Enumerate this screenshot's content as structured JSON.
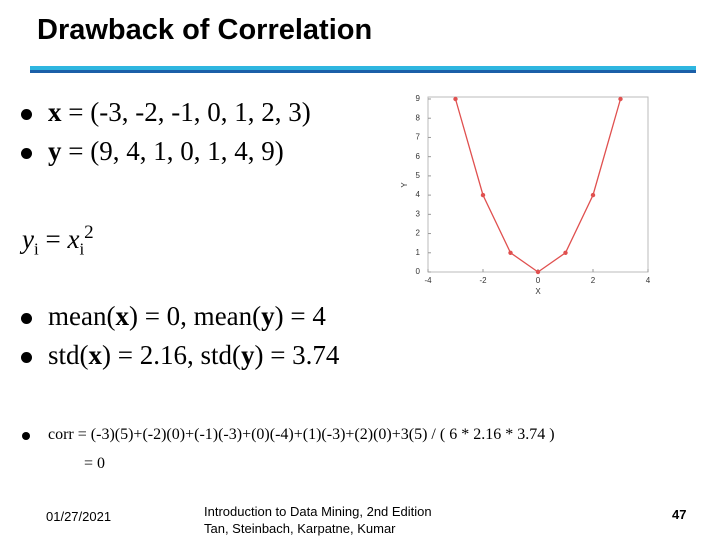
{
  "title": "Drawback of Correlation",
  "bullets_top": [
    [
      "x",
      " = (-3, -2, -1, 0, 1, 2, 3)"
    ],
    [
      "y",
      " = (9, 4, 1, 0, 1, 4, 9)"
    ]
  ],
  "formula": [
    "y",
    "i",
    " = ",
    "x",
    "i",
    "2"
  ],
  "bullets_stats": [
    [
      "mean(",
      "x",
      ") = 0, mean(",
      "y",
      ") = 4"
    ],
    [
      "std(",
      "x",
      ") = 2.16, std(",
      "y",
      ") = 3.74"
    ]
  ],
  "corr": [
    "corr = (-3)(5)+(-2)(0)+(-1)(-3)+(0)(-4)+(1)(-3)+(2)(0)+3(5) / ( 6 * 2.16 * 3.74 )",
    "= 0"
  ],
  "footer": {
    "date": "01/27/2021",
    "book": [
      "Introduction to Data Mining, 2nd Edition",
      "Tan, Steinbach, Karpatne, Kumar"
    ],
    "page": "47"
  },
  "chart_data": {
    "type": "line",
    "x": [
      -3,
      -2,
      -1,
      0,
      1,
      2,
      3
    ],
    "values": [
      9,
      4,
      1,
      0,
      1,
      4,
      9
    ],
    "color": "#e0504f",
    "xlim": [
      -4,
      4
    ],
    "xticks": [
      -4,
      -2,
      0,
      2,
      4
    ],
    "ylim": [
      0,
      9
    ],
    "yticks": [
      0,
      1,
      2,
      3,
      4,
      5,
      6,
      7,
      8,
      9
    ],
    "xlabel": "X",
    "ylabel": "Y"
  }
}
